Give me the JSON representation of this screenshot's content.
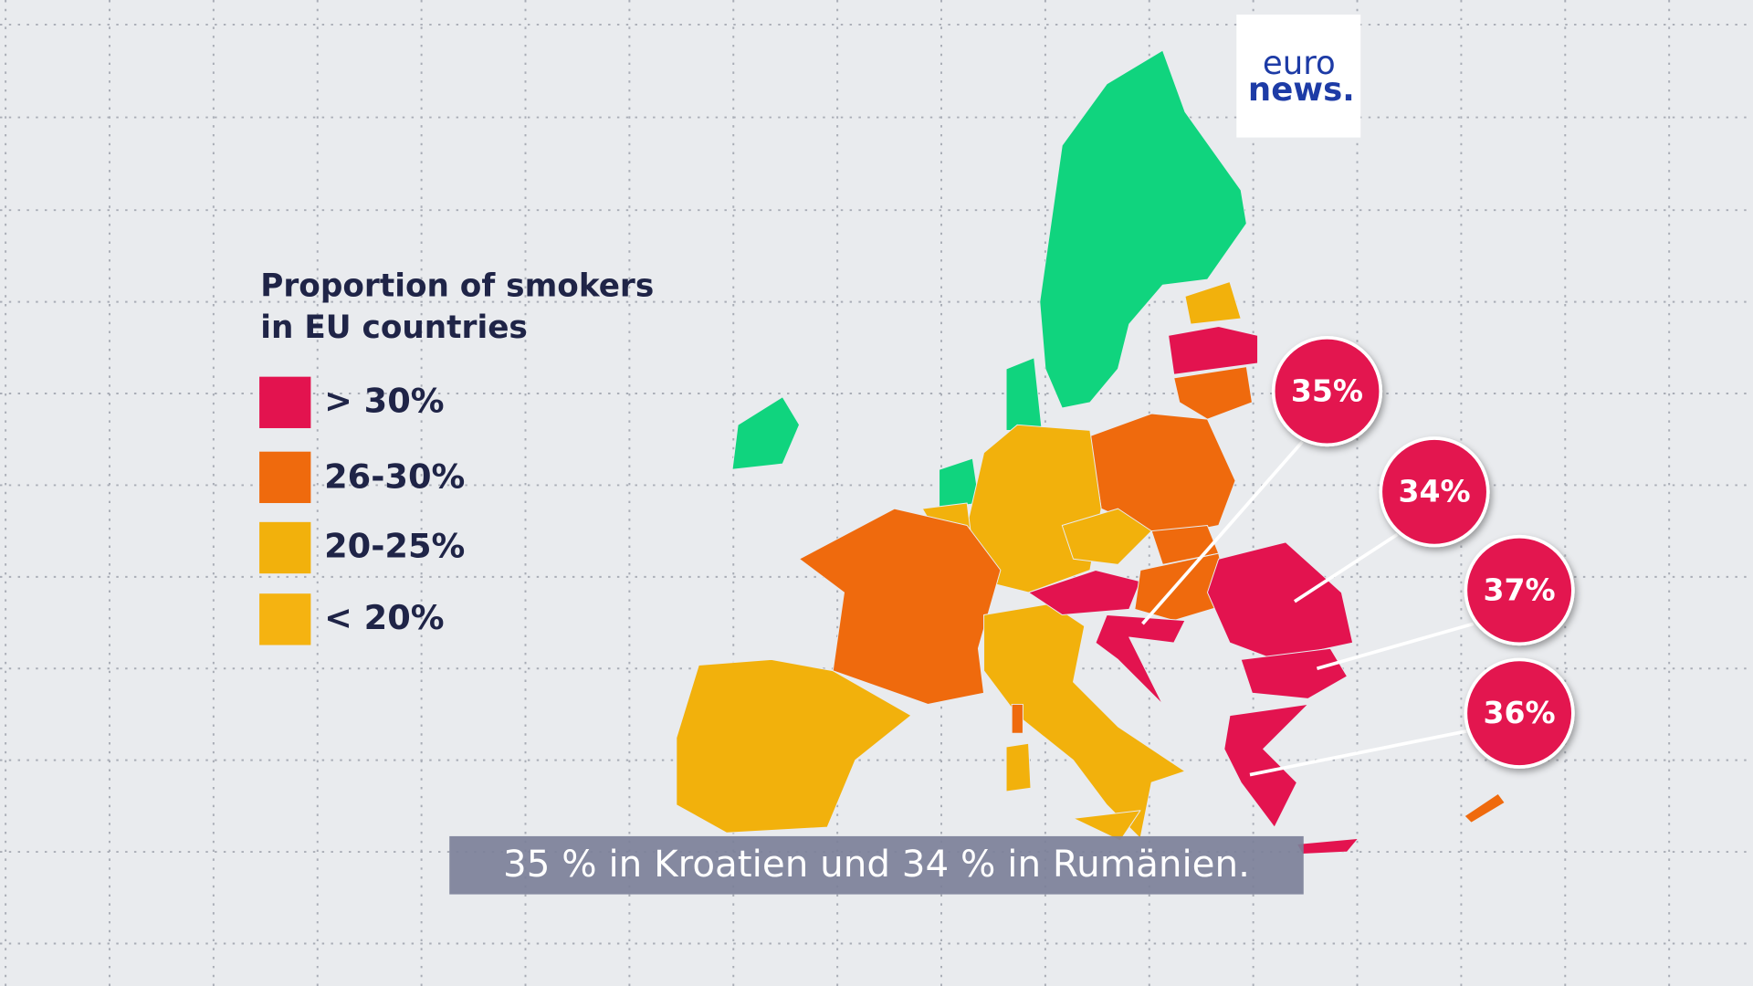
{
  "legend": {
    "title_lines": [
      "Proportion of smokers",
      "in EU countries"
    ],
    "items": [
      {
        "label": "> 30%",
        "color": "#e3134f"
      },
      {
        "label": "26-30%",
        "color": "#ef6a0d"
      },
      {
        "label": "20-25%",
        "color": "#f2b10c"
      },
      {
        "label": "< 20%",
        "color": "#f5b311"
      }
    ]
  },
  "map": {
    "other_color": "#10d47e"
  },
  "callouts": [
    "35%",
    "34%",
    "37%",
    "36%"
  ],
  "logo": {
    "top": "euro",
    "bottom": "news."
  },
  "subtitle": "35 % in Kroatien und 34 % in Rumänien."
}
